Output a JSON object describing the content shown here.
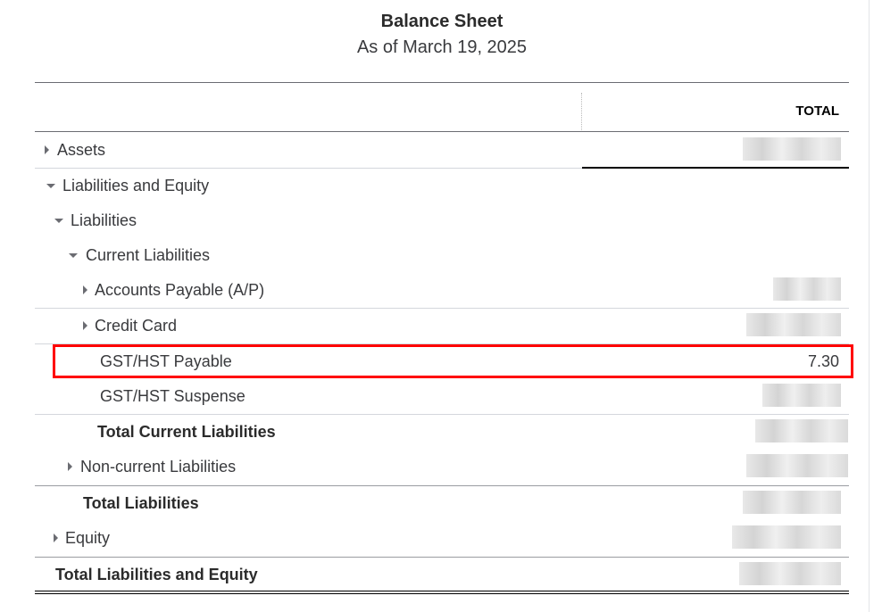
{
  "report": {
    "title": "Balance Sheet",
    "subtitle": "As of March 19, 2025",
    "column_header": "TOTAL"
  },
  "rows": [
    {
      "label": "Assets",
      "expander": "collapsed"
    },
    {
      "label": "Liabilities and Equity",
      "expander": "expanded"
    },
    {
      "label": "Liabilities",
      "expander": "expanded"
    },
    {
      "label": "Current Liabilities",
      "expander": "expanded"
    },
    {
      "label": "Accounts Payable (A/P)",
      "expander": "collapsed"
    },
    {
      "label": "Credit Card",
      "expander": "collapsed"
    },
    {
      "label": "GST/HST Payable",
      "value": "7.30",
      "highlighted": true,
      "highlight_color": "#ff0000"
    },
    {
      "label": "GST/HST Suspense"
    },
    {
      "label": "Total Current Liabilities",
      "bold": true
    },
    {
      "label": "Non-current Liabilities",
      "expander": "collapsed"
    },
    {
      "label": "Total Liabilities",
      "bold": true
    },
    {
      "label": "Equity",
      "expander": "collapsed"
    },
    {
      "label": "Total Liabilities and Equity",
      "bold": true
    }
  ]
}
